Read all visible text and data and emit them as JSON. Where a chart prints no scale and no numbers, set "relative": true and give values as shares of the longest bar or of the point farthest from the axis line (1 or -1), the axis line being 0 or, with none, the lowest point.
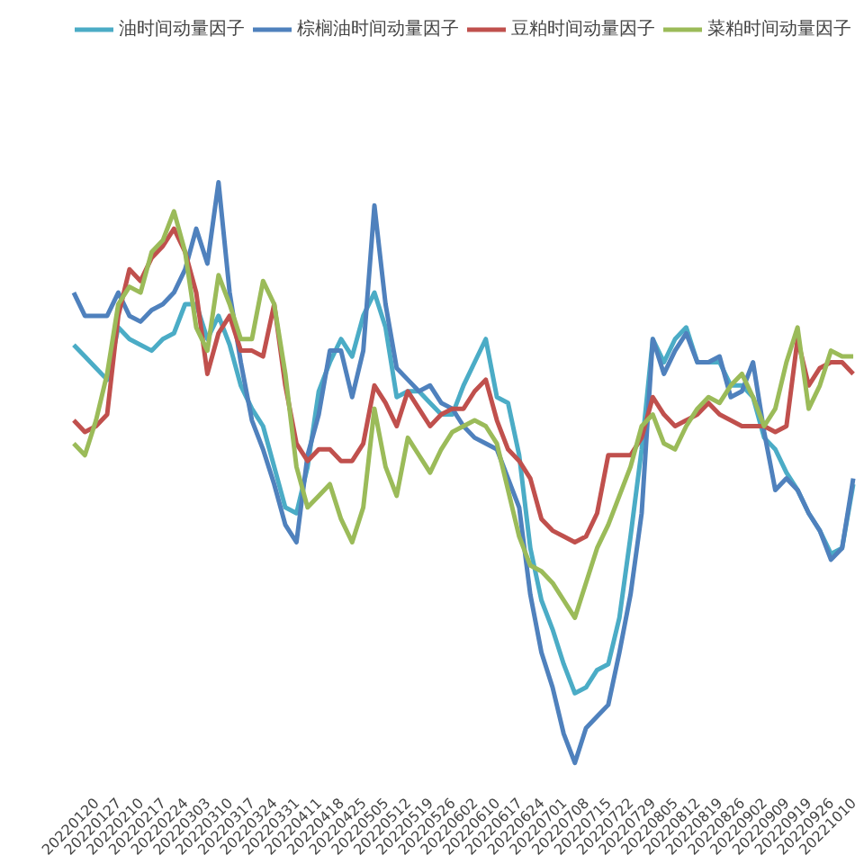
{
  "chart_data": {
    "type": "line",
    "relative": true,
    "legend": "top",
    "grid": false,
    "categories": [
      null,
      null,
      "20220120",
      null,
      "20220127",
      null,
      "20220210",
      null,
      "20220217",
      null,
      "20220224",
      null,
      "20220303",
      null,
      "20220310",
      null,
      "20220317",
      null,
      "20220324",
      null,
      "20220331",
      null,
      "20220411",
      null,
      "20220418",
      null,
      "20220425",
      null,
      "20220505",
      null,
      "20220512",
      null,
      "20220519",
      null,
      "20220526",
      null,
      "20220602",
      null,
      "20220610",
      null,
      "20220617",
      null,
      "20220624",
      null,
      "20220701",
      null,
      "20220708",
      null,
      "20220715",
      null,
      "20220722",
      null,
      "20220729",
      null,
      "20220805",
      null,
      "20220812",
      null,
      "20220819",
      null,
      "20220826",
      null,
      "20220902",
      null,
      "20220909",
      null,
      "20220919",
      null,
      "20220926",
      null,
      "20221010"
    ],
    "series": [
      {
        "name": "油时间动量因子",
        "color": "#4bacc6",
        "values": [
          0.72,
          0.7,
          0.68,
          0.66,
          0.75,
          0.73,
          0.72,
          0.71,
          0.73,
          0.74,
          0.79,
          0.79,
          0.73,
          0.77,
          0.72,
          0.65,
          0.61,
          0.58,
          0.51,
          0.44,
          0.43,
          0.51,
          0.64,
          0.69,
          0.73,
          0.7,
          0.77,
          0.81,
          0.75,
          0.63,
          0.64,
          0.64,
          0.62,
          0.6,
          0.6,
          0.65,
          0.69,
          0.73,
          0.63,
          0.62,
          0.53,
          0.37,
          0.28,
          0.23,
          0.17,
          0.12,
          0.13,
          0.16,
          0.17,
          0.25,
          0.39,
          0.54,
          0.73,
          0.69,
          0.73,
          0.75,
          0.69,
          0.69,
          0.69,
          0.65,
          0.65,
          0.63,
          0.56,
          0.54,
          0.5,
          0.47,
          0.43,
          0.4,
          0.36,
          0.37,
          0.48
        ]
      },
      {
        "name": "棕榈油时间动量因子",
        "color": "#4f81bd",
        "values": [
          0.81,
          0.77,
          0.77,
          0.77,
          0.81,
          0.77,
          0.76,
          0.78,
          0.79,
          0.81,
          0.85,
          0.92,
          0.86,
          1.0,
          0.81,
          0.69,
          0.59,
          0.54,
          0.48,
          0.41,
          0.38,
          0.53,
          0.6,
          0.71,
          0.71,
          0.63,
          0.71,
          0.96,
          0.79,
          0.68,
          0.66,
          0.64,
          0.65,
          0.62,
          0.61,
          0.58,
          0.56,
          0.55,
          0.54,
          0.49,
          0.44,
          0.29,
          0.19,
          0.13,
          0.05,
          0,
          0.06,
          0.08,
          0.1,
          0.19,
          0.29,
          0.43,
          0.73,
          0.67,
          0.71,
          0.74,
          0.69,
          0.69,
          0.7,
          0.63,
          0.64,
          0.69,
          0.57,
          0.47,
          0.49,
          0.47,
          0.43,
          0.4,
          0.35,
          0.37,
          0.49
        ]
      },
      {
        "name": "豆粕时间动量因子",
        "color": "#c0504d",
        "values": [
          0.59,
          0.57,
          0.58,
          0.6,
          0.77,
          0.85,
          0.83,
          0.87,
          0.89,
          0.92,
          0.88,
          0.81,
          0.67,
          0.74,
          0.77,
          0.71,
          0.71,
          0.7,
          0.79,
          0.65,
          0.55,
          0.52,
          0.54,
          0.54,
          0.52,
          0.52,
          0.55,
          0.65,
          0.62,
          0.58,
          0.64,
          0.61,
          0.58,
          0.6,
          0.61,
          0.61,
          0.64,
          0.66,
          0.59,
          0.54,
          0.52,
          0.49,
          0.42,
          0.4,
          0.39,
          0.38,
          0.39,
          0.43,
          0.53,
          0.53,
          0.53,
          0.56,
          0.63,
          0.6,
          0.58,
          0.59,
          0.6,
          0.62,
          0.6,
          0.59,
          0.58,
          0.58,
          0.58,
          0.57,
          0.58,
          0.73,
          0.65,
          0.68,
          0.69,
          0.69,
          0.67
        ]
      },
      {
        "name": "菜粕时间动量因子",
        "color": "#9bbb59",
        "values": [
          0.55,
          0.53,
          0.59,
          0.67,
          0.79,
          0.82,
          0.81,
          0.88,
          0.9,
          0.95,
          0.88,
          0.75,
          0.71,
          0.84,
          0.79,
          0.73,
          0.73,
          0.83,
          0.79,
          0.67,
          0.51,
          0.44,
          0.46,
          0.48,
          0.42,
          0.38,
          0.44,
          0.61,
          0.51,
          0.46,
          0.56,
          0.53,
          0.5,
          0.54,
          0.57,
          0.58,
          0.59,
          0.58,
          0.55,
          0.47,
          0.39,
          0.34,
          0.33,
          0.31,
          0.28,
          0.25,
          0.31,
          0.37,
          0.41,
          0.46,
          0.51,
          0.58,
          0.6,
          0.55,
          0.54,
          0.58,
          0.61,
          0.63,
          0.62,
          0.65,
          0.67,
          0.63,
          0.58,
          0.61,
          0.69,
          0.75,
          0.61,
          0.65,
          0.71,
          0.7,
          0.7
        ]
      }
    ]
  }
}
